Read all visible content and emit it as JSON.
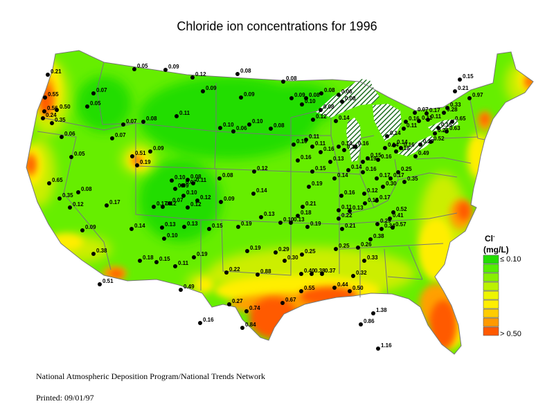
{
  "title": "Chloride ion concentrations for 1996",
  "legend": {
    "symbol": "Cl",
    "charge": "-",
    "unit": "(mg/L)",
    "low_label": "≤ 0.10",
    "high_label": "> 0.50",
    "colors": [
      "#22dd00",
      "#55ee00",
      "#88f000",
      "#bbf200",
      "#eef500",
      "#ffee00",
      "#ffcc00",
      "#ff9a00",
      "#ff5a00"
    ]
  },
  "footer": {
    "organization": "National Atmospheric Deposition Program/National Trends Network",
    "printed": "Printed: 09/01/97"
  },
  "colors": {
    "land_base": "#66ee00",
    "low": "#22dd00",
    "mid": "#ddf000",
    "yellow": "#ffee00",
    "orange": "#ffaa00",
    "high": "#ff5a00",
    "lakes_hatch": "#1e6e1e"
  },
  "sites": [
    {
      "value": "0.21",
      "lon": -123.4,
      "lat": 48.4
    },
    {
      "value": "0.55",
      "lon": -123.7,
      "lat": 46.5
    },
    {
      "value": "0.56",
      "lon": -123.8,
      "lat": 45.3
    },
    {
      "value": "0.50",
      "lon": -122.2,
      "lat": 45.4
    },
    {
      "value": "0.24",
      "lon": -124.0,
      "lat": 44.7
    },
    {
      "value": "0.35",
      "lon": -122.8,
      "lat": 44.3
    },
    {
      "value": "0.07",
      "lon": -117.3,
      "lat": 46.8
    },
    {
      "value": "0.05",
      "lon": -118.1,
      "lat": 45.7
    },
    {
      "value": "0.06",
      "lon": -121.5,
      "lat": 43.1
    },
    {
      "value": "0.05",
      "lon": -111.9,
      "lat": 48.9
    },
    {
      "value": "0.09",
      "lon": -107.8,
      "lat": 48.8
    },
    {
      "value": "0.12",
      "lon": -104.2,
      "lat": 48.2
    },
    {
      "value": "0.08",
      "lon": -98.2,
      "lat": 48.5
    },
    {
      "value": "0.09",
      "lon": -102.8,
      "lat": 47.0
    },
    {
      "value": "0.09",
      "lon": -97.8,
      "lat": 46.5
    },
    {
      "value": "0.07",
      "lon": -113.4,
      "lat": 44.2
    },
    {
      "value": "0.07",
      "lon": -114.8,
      "lat": 43.0
    },
    {
      "value": "0.05",
      "lon": -120.2,
      "lat": 41.4
    },
    {
      "value": "0.08",
      "lon": -110.7,
      "lat": 44.4
    },
    {
      "value": "0.11",
      "lon": -106.3,
      "lat": 44.9
    },
    {
      "value": "0.10",
      "lon": -100.5,
      "lat": 43.9
    },
    {
      "value": "0.06",
      "lon": -98.8,
      "lat": 43.6
    },
    {
      "value": "0.10",
      "lon": -96.7,
      "lat": 44.2
    },
    {
      "value": "0.08",
      "lon": -93.8,
      "lat": 43.8
    },
    {
      "value": "0.08",
      "lon": -92.2,
      "lat": 47.8
    },
    {
      "value": "0.09",
      "lon": -91.1,
      "lat": 46.4
    },
    {
      "value": "0.08",
      "lon": -89.1,
      "lat": 46.4
    },
    {
      "value": "0.08",
      "lon": -87.1,
      "lat": 46.8
    },
    {
      "value": "0.10",
      "lon": -89.7,
      "lat": 45.9
    },
    {
      "value": "0.08",
      "lon": -87.2,
      "lat": 45.4
    },
    {
      "value": "0.06",
      "lon": -84.8,
      "lat": 46.7
    },
    {
      "value": "0.08",
      "lon": -84.4,
      "lat": 46.1
    },
    {
      "value": "0.12",
      "lon": -88.2,
      "lat": 44.6
    },
    {
      "value": "0.11",
      "lon": -89.1,
      "lat": 42.9
    },
    {
      "value": "0.10",
      "lon": -90.8,
      "lat": 42.5
    },
    {
      "value": "0.14",
      "lon": -85.2,
      "lat": 44.5
    },
    {
      "value": "0.14",
      "lon": -84.8,
      "lat": 42.3
    },
    {
      "value": "0.51",
      "lon": -112.2,
      "lat": 41.5
    },
    {
      "value": "0.19",
      "lon": -111.5,
      "lat": 40.7
    },
    {
      "value": "0.09",
      "lon": -109.8,
      "lat": 41.9
    },
    {
      "value": "0.65",
      "lon": -123.2,
      "lat": 39.2
    },
    {
      "value": "0.35",
      "lon": -121.8,
      "lat": 37.9
    },
    {
      "value": "0.08",
      "lon": -119.3,
      "lat": 38.4
    },
    {
      "value": "0.12",
      "lon": -120.4,
      "lat": 37.1
    },
    {
      "value": "0.17",
      "lon": -115.6,
      "lat": 37.3
    },
    {
      "value": "0.09",
      "lon": -118.8,
      "lat": 35.2
    },
    {
      "value": "0.38",
      "lon": -117.3,
      "lat": 33.2
    },
    {
      "value": "0.51",
      "lon": -116.5,
      "lat": 30.6
    },
    {
      "value": "0.17",
      "lon": -109.3,
      "lat": 37.2
    },
    {
      "value": "0.10",
      "lon": -106.9,
      "lat": 39.4
    },
    {
      "value": "0.08",
      "lon": -104.8,
      "lat": 39.5
    },
    {
      "value": "0.11",
      "lon": -104.1,
      "lat": 39.2
    },
    {
      "value": "0.07",
      "lon": -105.5,
      "lat": 39.0
    },
    {
      "value": "0.09",
      "lon": -106.5,
      "lat": 38.7
    },
    {
      "value": "0.10",
      "lon": -105.4,
      "lat": 38.1
    },
    {
      "value": "0.07",
      "lon": -107.2,
      "lat": 37.5
    },
    {
      "value": "0.12",
      "lon": -108.1,
      "lat": 37.2
    },
    {
      "value": "0.12",
      "lon": -104.8,
      "lat": 37.1
    },
    {
      "value": "0.12",
      "lon": -103.5,
      "lat": 37.7
    },
    {
      "value": "0.08",
      "lon": -100.6,
      "lat": 39.6
    },
    {
      "value": "0.12",
      "lon": -96.0,
      "lat": 40.2
    },
    {
      "value": "0.09",
      "lon": -100.4,
      "lat": 37.6
    },
    {
      "value": "0.14",
      "lon": -96.1,
      "lat": 38.3
    },
    {
      "value": "0.14",
      "lon": -112.3,
      "lat": 35.3
    },
    {
      "value": "0.13",
      "lon": -108.2,
      "lat": 35.4
    },
    {
      "value": "0.10",
      "lon": -107.9,
      "lat": 34.5
    },
    {
      "value": "0.13",
      "lon": -105.3,
      "lat": 35.5
    },
    {
      "value": "0.15",
      "lon": -102.0,
      "lat": 35.3
    },
    {
      "value": "0.19",
      "lon": -98.1,
      "lat": 35.5
    },
    {
      "value": "0.13",
      "lon": -95.1,
      "lat": 36.3
    },
    {
      "value": "0.19",
      "lon": -96.9,
      "lat": 33.4
    },
    {
      "value": "0.18",
      "lon": -111.2,
      "lat": 32.6
    },
    {
      "value": "0.15",
      "lon": -109.0,
      "lat": 32.5
    },
    {
      "value": "0.11",
      "lon": -106.5,
      "lat": 32.1
    },
    {
      "value": "0.19",
      "lon": -104.0,
      "lat": 32.9
    },
    {
      "value": "0.49",
      "lon": -105.7,
      "lat": 30.1
    },
    {
      "value": "0.22",
      "lon": -99.7,
      "lat": 31.6
    },
    {
      "value": "0.27",
      "lon": -99.3,
      "lat": 28.9
    },
    {
      "value": "0.16",
      "lon": -103.2,
      "lat": 27.3
    },
    {
      "value": "0.74",
      "lon": -97.0,
      "lat": 28.3
    },
    {
      "value": "0.84",
      "lon": -97.6,
      "lat": 26.9
    },
    {
      "value": "0.88",
      "lon": -95.6,
      "lat": 31.4
    },
    {
      "value": "0.67",
      "lon": -92.3,
      "lat": 29.0
    },
    {
      "value": "0.55",
      "lon": -89.8,
      "lat": 30.0
    },
    {
      "value": "0.29",
      "lon": -93.2,
      "lat": 33.3
    },
    {
      "value": "0.30",
      "lon": -92.0,
      "lat": 32.6
    },
    {
      "value": "0.25",
      "lon": -89.7,
      "lat": 33.1
    },
    {
      "value": "0.40",
      "lon": -89.8,
      "lat": 31.5
    },
    {
      "value": "0.38",
      "lon": -88.4,
      "lat": 31.5
    },
    {
      "value": "0.37",
      "lon": -87.0,
      "lat": 31.5
    },
    {
      "value": "0.10",
      "lon": -92.5,
      "lat": 35.8
    },
    {
      "value": "0.13",
      "lon": -91.2,
      "lat": 35.8
    },
    {
      "value": "0.18",
      "lon": -90.2,
      "lat": 36.4
    },
    {
      "value": "0.19",
      "lon": -89.0,
      "lat": 35.5
    },
    {
      "value": "0.21",
      "lon": -89.6,
      "lat": 37.2
    },
    {
      "value": "0.19",
      "lon": -88.8,
      "lat": 38.9
    },
    {
      "value": "0.15",
      "lon": -88.3,
      "lat": 40.2
    },
    {
      "value": "0.16",
      "lon": -90.2,
      "lat": 41.1
    },
    {
      "value": "0.11",
      "lon": -88.3,
      "lat": 42.3
    },
    {
      "value": "0.16",
      "lon": -87.2,
      "lat": 41.8
    },
    {
      "value": "0.13",
      "lon": -85.9,
      "lat": 41.0
    },
    {
      "value": "0.14",
      "lon": -85.4,
      "lat": 39.6
    },
    {
      "value": "0.16",
      "lon": -84.5,
      "lat": 38.1
    },
    {
      "value": "0.11",
      "lon": -84.8,
      "lat": 36.9
    },
    {
      "value": "0.22",
      "lon": -84.8,
      "lat": 36.2
    },
    {
      "value": "0.21",
      "lon": -84.4,
      "lat": 35.3
    },
    {
      "value": "0.13",
      "lon": -83.4,
      "lat": 36.8
    },
    {
      "value": "0.25",
      "lon": -85.2,
      "lat": 33.6
    },
    {
      "value": "0.26",
      "lon": -82.3,
      "lat": 33.7
    },
    {
      "value": "0.33",
      "lon": -81.4,
      "lat": 32.6
    },
    {
      "value": "0.32",
      "lon": -82.9,
      "lat": 31.3
    },
    {
      "value": "0.44",
      "lon": -85.4,
      "lat": 30.3
    },
    {
      "value": "0.50",
      "lon": -83.4,
      "lat": 30.0
    },
    {
      "value": "1.38",
      "lon": -80.2,
      "lat": 28.1
    },
    {
      "value": "0.86",
      "lon": -81.9,
      "lat": 27.2
    },
    {
      "value": "1.16",
      "lon": -79.6,
      "lat": 25.1
    },
    {
      "value": "0.38",
      "lon": -80.6,
      "lat": 34.4
    },
    {
      "value": "0.29",
      "lon": -79.7,
      "lat": 35.7
    },
    {
      "value": "0.34",
      "lon": -79.1,
      "lat": 35.3
    },
    {
      "value": "0.57",
      "lon": -77.7,
      "lat": 35.4
    },
    {
      "value": "0.52",
      "lon": -77.6,
      "lat": 36.7
    },
    {
      "value": "0.41",
      "lon": -78.0,
      "lat": 36.2
    },
    {
      "value": "0.17",
      "lon": -81.3,
      "lat": 37.5
    },
    {
      "value": "0.12",
      "lon": -81.4,
      "lat": 38.3
    },
    {
      "value": "0.30",
      "lon": -79.0,
      "lat": 38.9
    },
    {
      "value": "0.17",
      "lon": -79.8,
      "lat": 37.7
    },
    {
      "value": "0.16",
      "lon": -81.6,
      "lat": 40.1
    },
    {
      "value": "0.17",
      "lon": -79.8,
      "lat": 39.6
    },
    {
      "value": "0.19",
      "lon": -81.6,
      "lat": 41.0
    },
    {
      "value": "0.14",
      "lon": -83.5,
      "lat": 40.3
    },
    {
      "value": "0.13",
      "lon": -84.1,
      "lat": 42.0
    },
    {
      "value": "0.16",
      "lon": -82.6,
      "lat": 42.3
    },
    {
      "value": "0.15",
      "lon": -81.0,
      "lat": 41.3
    },
    {
      "value": "0.16",
      "lon": -79.6,
      "lat": 41.2
    },
    {
      "value": "0.18",
      "lon": -77.2,
      "lat": 41.9
    },
    {
      "value": "0.14",
      "lon": -78.4,
      "lat": 43.2
    },
    {
      "value": "0.11",
      "lon": -76.2,
      "lat": 43.8
    },
    {
      "value": "0.14",
      "lon": -78.7,
      "lat": 42.2
    },
    {
      "value": "0.14",
      "lon": -77.5,
      "lat": 42.4
    },
    {
      "value": "0.16",
      "lon": -76.6,
      "lat": 42.2
    },
    {
      "value": "0.25",
      "lon": -76.9,
      "lat": 40.1
    },
    {
      "value": "0.17",
      "lon": -77.9,
      "lat": 39.6
    },
    {
      "value": "0.35",
      "lon": -76.1,
      "lat": 39.3
    },
    {
      "value": "0.49",
      "lon": -74.6,
      "lat": 41.5
    },
    {
      "value": "0.29",
      "lon": -74.0,
      "lat": 42.5
    },
    {
      "value": "0.52",
      "lon": -72.6,
      "lat": 42.7
    },
    {
      "value": "0.23",
      "lon": -72.1,
      "lat": 43.4
    },
    {
      "value": "0.16",
      "lon": -75.9,
      "lat": 44.4
    },
    {
      "value": "0.11",
      "lon": -74.2,
      "lat": 44.5
    },
    {
      "value": "0.07",
      "lon": -74.7,
      "lat": 45.2
    },
    {
      "value": "0.17",
      "lon": -73.2,
      "lat": 45.1
    },
    {
      "value": "0.11",
      "lon": -73.0,
      "lat": 44.6
    },
    {
      "value": "0.15",
      "lon": -71.6,
      "lat": 43.9
    },
    {
      "value": "0.63",
      "lon": -70.5,
      "lat": 43.6
    },
    {
      "value": "0.65",
      "lon": -69.8,
      "lat": 44.4
    },
    {
      "value": "0.28",
      "lon": -70.9,
      "lat": 45.2
    },
    {
      "value": "0.33",
      "lon": -70.4,
      "lat": 45.6
    },
    {
      "value": "0.97",
      "lon": -67.5,
      "lat": 46.4
    },
    {
      "value": "0.21",
      "lon": -69.4,
      "lat": 47.0
    },
    {
      "value": "0.15",
      "lon": -68.8,
      "lat": 48.0
    }
  ]
}
